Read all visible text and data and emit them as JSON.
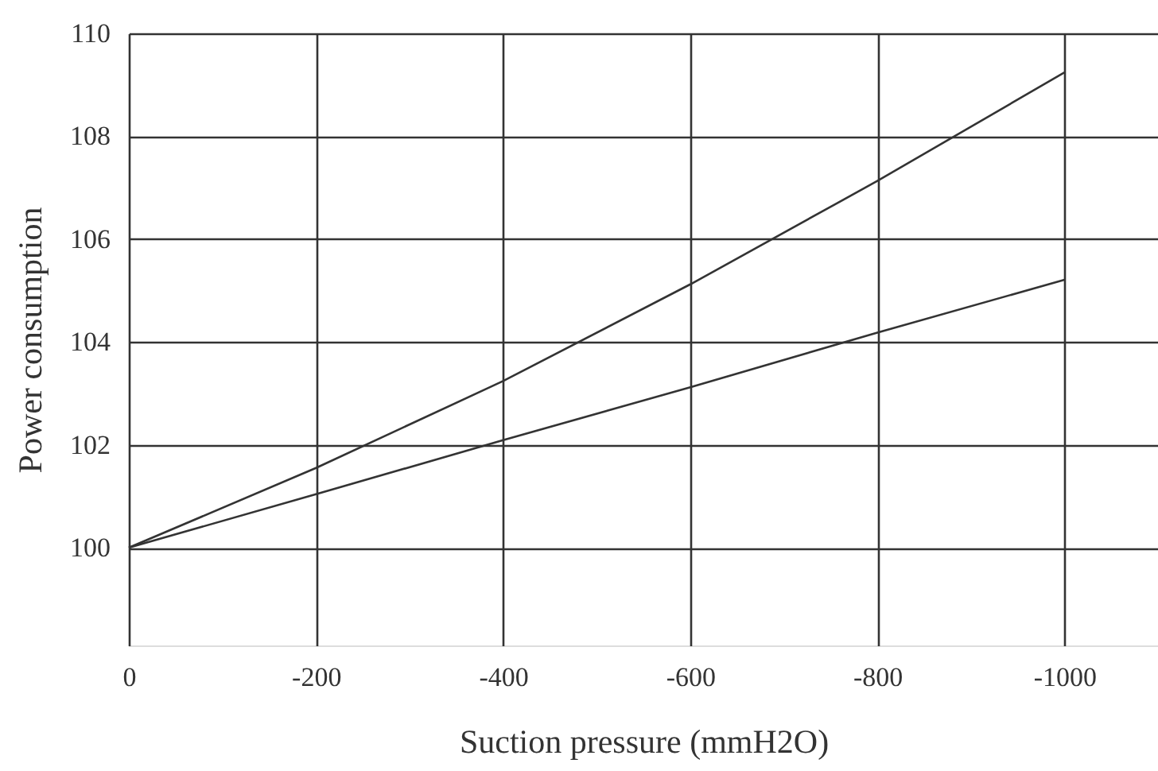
{
  "chart_data": {
    "type": "line",
    "xlabel": "Suction pressure (mmH2O)",
    "ylabel": "Power consumption",
    "x": [
      0,
      -200,
      -400,
      -600,
      -800,
      -1000
    ],
    "series": [
      {
        "color": "#333333",
        "values": [
          100,
          101.55,
          103.24,
          105.12,
          107.13,
          109.24
        ]
      },
      {
        "color": "#333333",
        "values": [
          100,
          101.04,
          102.09,
          103.12,
          104.18,
          105.21
        ]
      }
    ],
    "xlim": [
      0,
      -1100
    ],
    "xticks": [
      0,
      -200,
      -400,
      -600,
      -800,
      -1000
    ],
    "ylim": [
      98.1,
      110
    ],
    "yticks": [
      100,
      102,
      104,
      106,
      108,
      110
    ],
    "grid": true,
    "legend": false,
    "marker": "none",
    "line_style": "solid"
  }
}
